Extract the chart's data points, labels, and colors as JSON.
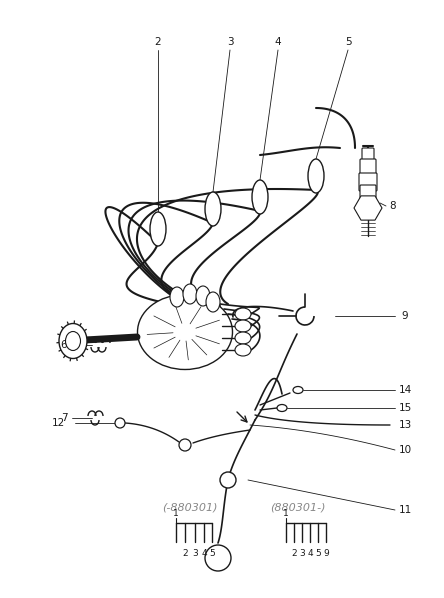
{
  "bg_color": "#ffffff",
  "lc": "#1a1a1a",
  "gc": "#888888",
  "figw": 4.44,
  "figh": 5.98,
  "dpi": 100,
  "bottom_label1": "(-880301)",
  "bottom_label2": "(880301-)",
  "b1_tick_labels": [
    "2",
    "3",
    "4",
    "5"
  ],
  "b2_tick_labels": [
    "2",
    "3",
    "4",
    "5",
    "9"
  ],
  "b1_top": "1",
  "b2_top": "1"
}
